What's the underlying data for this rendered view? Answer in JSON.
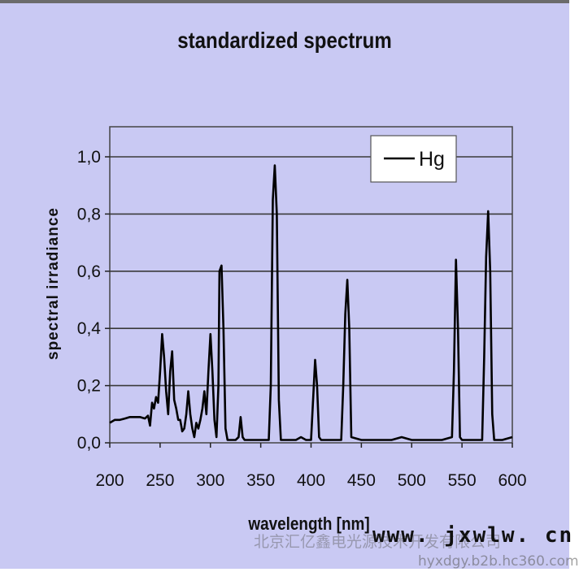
{
  "chart_data": {
    "type": "line",
    "title": "standardized spectrum",
    "xlabel": "wavelength [nm]",
    "ylabel": "spectral irradiance",
    "xlim": [
      200,
      600
    ],
    "ylim": [
      0.0,
      1.1
    ],
    "x_ticks": [
      "200",
      "250",
      "300",
      "350",
      "400",
      "450",
      "500",
      "550",
      "600"
    ],
    "y_ticks": [
      "0,0",
      "0,2",
      "0,4",
      "0,6",
      "0,8",
      "1,0"
    ],
    "grid": "horizontal",
    "legend": "top-right",
    "series": [
      {
        "name": "Hg",
        "color": "#000000",
        "x": [
          200,
          205,
          210,
          215,
          220,
          225,
          230,
          235,
          238,
          240,
          242,
          244,
          246,
          248,
          250,
          252,
          254,
          256,
          258,
          260,
          262,
          264,
          266,
          268,
          270,
          272,
          274,
          276,
          278,
          280,
          282,
          284,
          286,
          288,
          290,
          292,
          294,
          296,
          298,
          300,
          302,
          304,
          306,
          308,
          309,
          311,
          313,
          315,
          317,
          320,
          325,
          328,
          330,
          332,
          334,
          336,
          340,
          350,
          358,
          360,
          362,
          364,
          366,
          368,
          370,
          372,
          380,
          385,
          390,
          395,
          400,
          402,
          404,
          406,
          408,
          410,
          420,
          430,
          432,
          434,
          436,
          438,
          440,
          450,
          460,
          470,
          480,
          490,
          500,
          510,
          520,
          530,
          540,
          542,
          544,
          546,
          548,
          550,
          560,
          570,
          572,
          574,
          576,
          578,
          580,
          582,
          590,
          600
        ],
        "values": [
          0.07,
          0.08,
          0.08,
          0.085,
          0.09,
          0.09,
          0.09,
          0.085,
          0.095,
          0.06,
          0.14,
          0.12,
          0.16,
          0.14,
          0.25,
          0.38,
          0.3,
          0.18,
          0.1,
          0.25,
          0.32,
          0.15,
          0.12,
          0.08,
          0.08,
          0.04,
          0.05,
          0.1,
          0.18,
          0.1,
          0.05,
          0.02,
          0.07,
          0.05,
          0.08,
          0.12,
          0.18,
          0.1,
          0.25,
          0.38,
          0.25,
          0.08,
          0.02,
          0.2,
          0.6,
          0.62,
          0.4,
          0.05,
          0.01,
          0.01,
          0.01,
          0.02,
          0.09,
          0.02,
          0.01,
          0.01,
          0.01,
          0.01,
          0.01,
          0.2,
          0.85,
          0.97,
          0.8,
          0.15,
          0.01,
          0.01,
          0.01,
          0.01,
          0.02,
          0.01,
          0.01,
          0.15,
          0.29,
          0.2,
          0.02,
          0.01,
          0.01,
          0.01,
          0.2,
          0.45,
          0.57,
          0.4,
          0.02,
          0.01,
          0.01,
          0.01,
          0.01,
          0.02,
          0.01,
          0.01,
          0.01,
          0.01,
          0.02,
          0.25,
          0.64,
          0.4,
          0.02,
          0.01,
          0.01,
          0.01,
          0.3,
          0.65,
          0.81,
          0.6,
          0.1,
          0.01,
          0.01,
          0.02
        ]
      }
    ]
  },
  "watermark": {
    "line1": "北京汇亿鑫电光源技术开发有限公司",
    "line2": "www. jxwlw. cn",
    "line3": "hyxdgy.b2b.hc360.com"
  }
}
